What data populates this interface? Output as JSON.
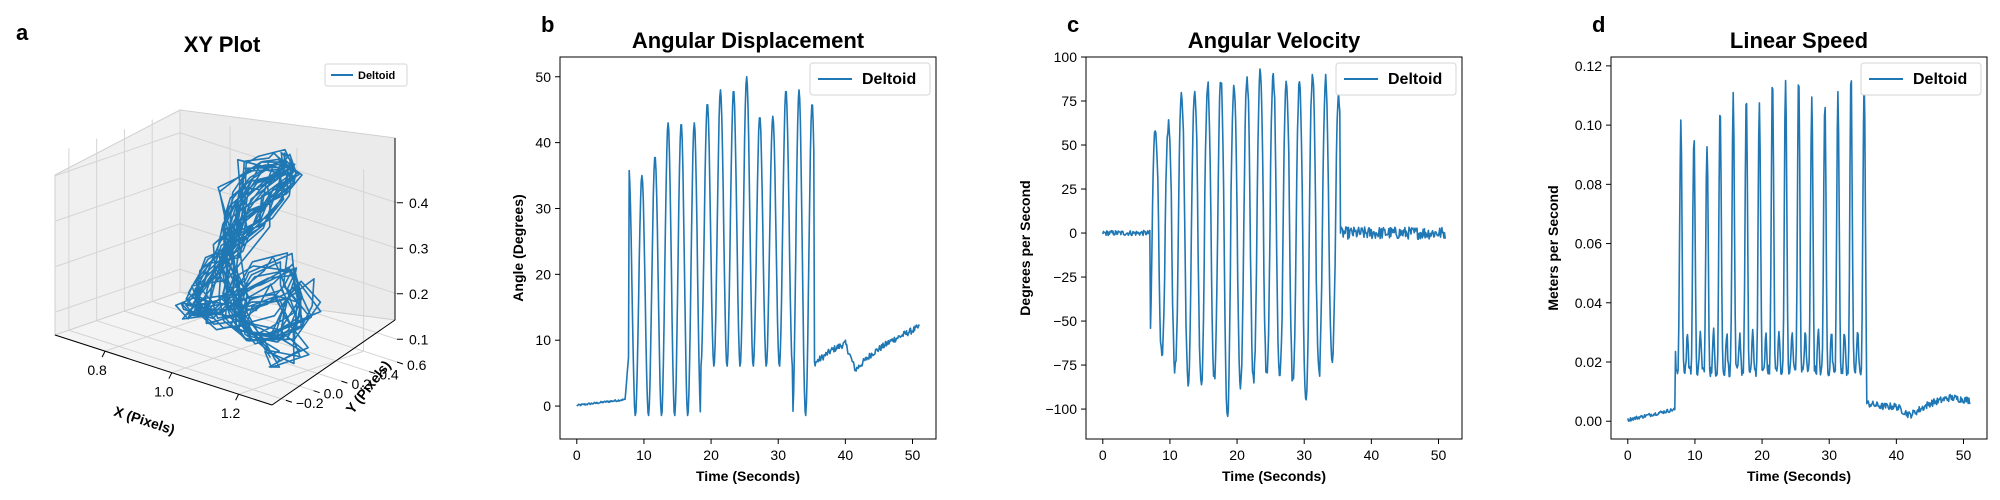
{
  "accent_color": "#1f77b4",
  "panels": {
    "a": {
      "letter": "a"
    },
    "b": {
      "letter": "b"
    },
    "c": {
      "letter": "c"
    },
    "d": {
      "letter": "d"
    }
  },
  "chart_data": [
    {
      "panel": "a",
      "type": "line",
      "projection": "3d",
      "title": "XY Plot",
      "xlabel": "X (Pixels)",
      "ylabel": "Y (Pixels)",
      "zlabel": "",
      "x_ticks": [
        "0.8",
        "1.0",
        "1.2"
      ],
      "y_ticks": [
        "-0.2",
        "0.0",
        "0.2",
        "0.4",
        "0.6"
      ],
      "z_ticks": [
        "0.1",
        "0.2",
        "0.3",
        "0.4"
      ],
      "xlim": [
        0.65,
        1.3
      ],
      "ylim": [
        -0.3,
        0.6
      ],
      "zlim": [
        0.05,
        0.45
      ],
      "legend": "upper-right",
      "grid": true,
      "series": [
        {
          "name": "Deltoid",
          "color": "#1f77b4",
          "x": [
            1.17,
            1.13,
            1.08,
            1.02,
            0.96,
            0.92,
            0.9,
            0.92,
            0.95,
            0.99,
            1.02,
            1.03,
            1.01,
            0.97,
            0.93,
            0.9,
            0.89,
            0.9,
            0.93,
            0.97,
            1.01,
            1.05,
            1.1,
            1.14,
            1.18,
            1.15,
            1.1,
            1.05,
            1.0,
            0.96,
            0.93,
            0.92,
            0.94,
            0.98,
            1.01,
            1.03,
            1.02,
            0.99,
            0.95,
            0.91,
            0.89,
            0.9,
            0.94,
            0.99,
            1.04,
            1.09,
            1.13,
            1.17,
            1.2,
            1.16,
            1.11,
            1.06,
            1.01,
            0.97,
            0.94,
            0.93,
            0.95,
            0.99,
            1.02,
            1.04,
            1.02,
            0.98,
            0.94,
            0.9,
            0.88,
            0.91,
            0.96,
            1.02,
            1.08,
            1.13,
            1.18,
            1.22,
            1.19,
            1.14,
            1.08,
            1.03,
            0.98,
            0.95,
            0.93,
            0.94,
            0.97,
            1.0,
            1.03,
            1.04,
            1.01,
            0.97,
            0.93,
            0.9,
            0.89,
            0.91,
            0.95,
            1.0,
            1.05,
            1.1,
            1.15,
            1.19,
            1.24,
            1.16
          ],
          "y": [
            0.02,
            0.05,
            0.09,
            0.15,
            0.22,
            0.3,
            0.38,
            0.44,
            0.48,
            0.5,
            0.47,
            0.41,
            0.34,
            0.27,
            0.2,
            0.13,
            0.08,
            0.06,
            0.08,
            0.12,
            0.17,
            0.21,
            0.24,
            0.2,
            0.14,
            0.09,
            0.06,
            0.07,
            0.12,
            0.19,
            0.27,
            0.35,
            0.42,
            0.47,
            0.5,
            0.48,
            0.43,
            0.36,
            0.29,
            0.22,
            0.15,
            0.1,
            0.07,
            0.09,
            0.13,
            0.18,
            0.22,
            0.19,
            0.13,
            0.08,
            0.05,
            0.07,
            0.13,
            0.21,
            0.29,
            0.37,
            0.43,
            0.48,
            0.51,
            0.49,
            0.44,
            0.37,
            0.3,
            0.23,
            0.16,
            0.11,
            0.08,
            0.1,
            0.14,
            0.18,
            0.2,
            0.16,
            0.11,
            0.07,
            0.05,
            0.08,
            0.14,
            0.22,
            0.3,
            0.38,
            0.44,
            0.48,
            0.5,
            0.47,
            0.41,
            0.34,
            0.27,
            0.2,
            0.14,
            0.1,
            0.08,
            0.1,
            0.14,
            0.17,
            0.15,
            0.11,
            0.07,
            0.04
          ],
          "z": [
            0.09,
            0.11,
            0.14,
            0.18,
            0.23,
            0.29,
            0.35,
            0.4,
            0.43,
            0.44,
            0.42,
            0.38,
            0.32,
            0.26,
            0.2,
            0.15,
            0.12,
            0.11,
            0.13,
            0.16,
            0.2,
            0.24,
            0.27,
            0.23,
            0.18,
            0.14,
            0.12,
            0.13,
            0.17,
            0.22,
            0.28,
            0.34,
            0.39,
            0.42,
            0.43,
            0.41,
            0.37,
            0.31,
            0.25,
            0.19,
            0.15,
            0.12,
            0.12,
            0.14,
            0.18,
            0.22,
            0.25,
            0.21,
            0.16,
            0.13,
            0.11,
            0.13,
            0.18,
            0.24,
            0.3,
            0.36,
            0.4,
            0.43,
            0.45,
            0.43,
            0.39,
            0.33,
            0.27,
            0.21,
            0.16,
            0.13,
            0.12,
            0.14,
            0.17,
            0.21,
            0.24,
            0.2,
            0.15,
            0.12,
            0.11,
            0.13,
            0.18,
            0.24,
            0.3,
            0.35,
            0.39,
            0.42,
            0.43,
            0.41,
            0.37,
            0.31,
            0.25,
            0.19,
            0.15,
            0.13,
            0.12,
            0.14,
            0.17,
            0.2,
            0.18,
            0.14,
            0.1,
            0.08
          ]
        }
      ]
    },
    {
      "panel": "b",
      "type": "line",
      "title": "Angular Displacement",
      "xlabel": "Time (Seconds)",
      "ylabel": "Angle (Degrees)",
      "xlim": [
        -2.5,
        53.5
      ],
      "ylim": [
        -5,
        53
      ],
      "x_ticks": [
        0,
        10,
        20,
        30,
        40,
        50
      ],
      "y_ticks": [
        0,
        10,
        20,
        30,
        40,
        50
      ],
      "legend": "upper-right",
      "grid": false,
      "waveform": {
        "start": 0,
        "end": 51,
        "dt": 0.1,
        "pre_end": 7.2,
        "active_end": 35.4,
        "pre_start_value": 0.1,
        "pre_end_value": 1.0,
        "period": 1.95,
        "phase": 0.55,
        "trough": -1.5,
        "peaks": [
          36,
          35,
          38,
          43,
          43,
          43,
          46,
          48,
          48,
          50,
          44,
          44,
          48,
          48,
          46
        ],
        "post_trend": [
          [
            35.4,
            6.5
          ],
          [
            38,
            8.5
          ],
          [
            40,
            9.5
          ],
          [
            41.5,
            5.5
          ],
          [
            44,
            8.0
          ],
          [
            47,
            10.0
          ],
          [
            51,
            12.0
          ]
        ],
        "post_noise": 0.5
      },
      "series": [
        {
          "name": "Deltoid",
          "color": "#1f77b4"
        }
      ]
    },
    {
      "panel": "c",
      "type": "line",
      "title": "Angular Velocity",
      "xlabel": "Time (Seconds)",
      "ylabel": "Degrees per Second",
      "xlim": [
        -2.5,
        53.5
      ],
      "ylim": [
        -117,
        100
      ],
      "x_ticks": [
        0,
        10,
        20,
        30,
        40,
        50
      ],
      "y_ticks": [
        -100,
        -75,
        -50,
        -25,
        0,
        25,
        50,
        75,
        100
      ],
      "legend": "upper-right",
      "grid": false,
      "waveform": {
        "start": 0,
        "end": 51,
        "dt": 0.1,
        "pre_end": 7.0,
        "active_end": 35.4,
        "period": 1.95,
        "phase": 0.35,
        "peaks": [
          60,
          62,
          78,
          83,
          85,
          86,
          84,
          89,
          92,
          90,
          88,
          86,
          90,
          87,
          79
        ],
        "troughs": [
          -72,
          -78,
          -85,
          -86,
          -82,
          -105,
          -88,
          -84,
          -80,
          -82,
          -85,
          -98,
          -80,
          -72,
          -70
        ],
        "post_noise": 3.5,
        "baseline_noise": 1.5
      },
      "series": [
        {
          "name": "Deltoid",
          "color": "#1f77b4"
        }
      ]
    },
    {
      "panel": "d",
      "type": "line",
      "title": "Linear Speed",
      "xlabel": "Time (Seconds)",
      "ylabel": "Meters per Second",
      "xlim": [
        -2.5,
        53.5
      ],
      "ylim": [
        -0.006,
        0.123
      ],
      "x_ticks": [
        0,
        10,
        20,
        30,
        40,
        50
      ],
      "y_ticks": [
        0.0,
        0.02,
        0.04,
        0.06,
        0.08,
        0.1,
        0.12
      ],
      "tick_labels_y": [
        "0.00",
        "0.02",
        "0.04",
        "0.06",
        "0.08",
        "0.10",
        "0.12"
      ],
      "legend": "upper-right",
      "grid": false,
      "waveform": {
        "start": 0,
        "end": 51,
        "dt": 0.1,
        "pre_end": 7.0,
        "active_end": 35.6,
        "pre_start_value": 0.0005,
        "pre_end_value": 0.004,
        "period": 1.95,
        "phase": 0.9,
        "peaks": [
          0.101,
          0.096,
          0.093,
          0.107,
          0.109,
          0.11,
          0.107,
          0.116,
          0.117,
          0.118,
          0.11,
          0.108,
          0.113,
          0.117,
          0.115
        ],
        "trough_base": 0.017,
        "mini_peak": 0.03,
        "post_trend": [
          [
            35.6,
            0.006
          ],
          [
            38,
            0.005
          ],
          [
            40,
            0.005
          ],
          [
            42,
            0.002
          ],
          [
            45,
            0.006
          ],
          [
            48,
            0.008
          ],
          [
            51,
            0.007
          ]
        ],
        "post_noise": 0.0012
      },
      "series": [
        {
          "name": "Deltoid",
          "color": "#1f77b4"
        }
      ]
    }
  ]
}
